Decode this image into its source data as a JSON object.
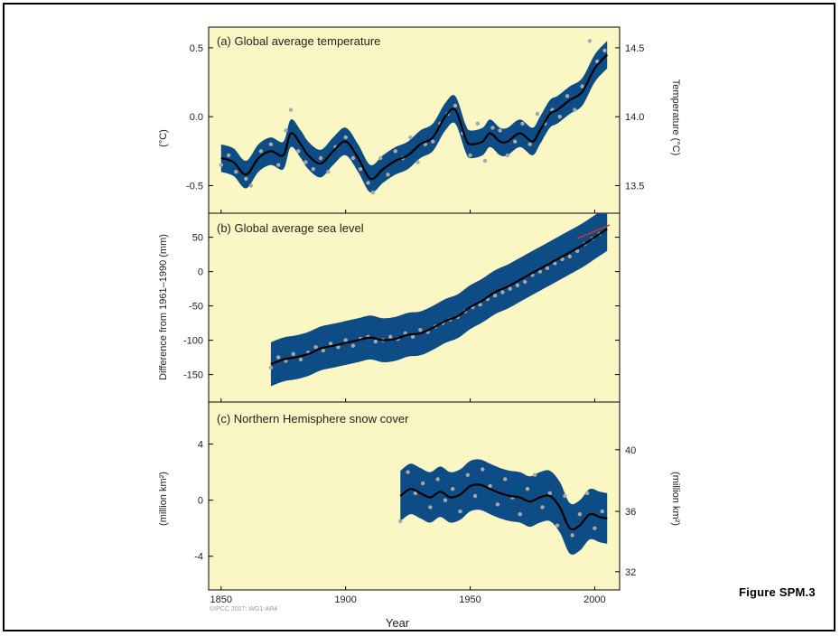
{
  "caption": "Figure SPM.3",
  "copyright": "©IPCC 2007: WG1-AR4",
  "colors": {
    "panel_bg": "#fbf7c4",
    "band": "#0e4c86",
    "curve": "#000000",
    "points": "#a8a8a8",
    "satellite_line": "#d0342c"
  },
  "chart_data": [
    {
      "type": "line",
      "title": "(a) Global average temperature",
      "ylabel": "(°C)",
      "y2label": "Temperature (°C)",
      "xlim": [
        1845,
        2010
      ],
      "ylim": [
        -0.7,
        0.65
      ],
      "y_ticks": [
        0.5,
        0.0,
        -0.5
      ],
      "y_tick_labels": [
        "0.5",
        "0.0",
        "-0.5"
      ],
      "y2_ticks": [
        0.5,
        0.0,
        -0.5
      ],
      "y2_tick_labels": [
        "14.5",
        "14.0",
        "13.5"
      ],
      "band_halfwidth": 0.1,
      "series": [
        {
          "x": [
            1850,
            1855,
            1860,
            1865,
            1870,
            1875,
            1878,
            1882,
            1885,
            1890,
            1895,
            1900,
            1905,
            1910,
            1915,
            1920,
            1925,
            1930,
            1935,
            1940,
            1944,
            1948,
            1950,
            1955,
            1958,
            1962,
            1965,
            1970,
            1975,
            1978,
            1982,
            1985,
            1990,
            1995,
            2000,
            2005
          ],
          "y": [
            -0.3,
            -0.33,
            -0.42,
            -0.3,
            -0.25,
            -0.28,
            -0.12,
            -0.2,
            -0.28,
            -0.34,
            -0.25,
            -0.18,
            -0.3,
            -0.45,
            -0.38,
            -0.32,
            -0.28,
            -0.2,
            -0.15,
            0.0,
            0.05,
            -0.15,
            -0.2,
            -0.18,
            -0.12,
            -0.18,
            -0.18,
            -0.12,
            -0.18,
            -0.1,
            0.02,
            0.05,
            0.12,
            0.18,
            0.35,
            0.45
          ]
        }
      ],
      "points": {
        "x": [
          1850,
          1853,
          1856,
          1860,
          1862,
          1866,
          1870,
          1873,
          1876,
          1878,
          1881,
          1884,
          1887,
          1890,
          1893,
          1896,
          1900,
          1903,
          1906,
          1909,
          1911,
          1914,
          1917,
          1920,
          1923,
          1926,
          1929,
          1932,
          1935,
          1938,
          1941,
          1944,
          1947,
          1950,
          1953,
          1956,
          1959,
          1962,
          1965,
          1968,
          1971,
          1974,
          1977,
          1980,
          1983,
          1986,
          1989,
          1992,
          1995,
          1998,
          2001,
          2004
        ],
        "y": [
          -0.35,
          -0.28,
          -0.4,
          -0.45,
          -0.5,
          -0.25,
          -0.2,
          -0.35,
          -0.1,
          0.05,
          -0.25,
          -0.33,
          -0.38,
          -0.3,
          -0.4,
          -0.22,
          -0.15,
          -0.3,
          -0.38,
          -0.48,
          -0.55,
          -0.3,
          -0.42,
          -0.25,
          -0.3,
          -0.15,
          -0.33,
          -0.2,
          -0.18,
          -0.05,
          0.02,
          0.08,
          -0.12,
          -0.28,
          -0.05,
          -0.32,
          -0.08,
          -0.1,
          -0.28,
          -0.18,
          -0.05,
          -0.2,
          0.02,
          -0.05,
          0.05,
          0.0,
          0.15,
          0.05,
          0.22,
          0.55,
          0.4,
          0.48
        ]
      }
    },
    {
      "type": "line",
      "title": "(b) Global average sea level",
      "ylabel": "Difference from 1961–1990 (mm)",
      "xlim": [
        1845,
        2010
      ],
      "ylim": [
        -190,
        85
      ],
      "y_ticks": [
        50,
        0,
        -50,
        -100,
        -150
      ],
      "y_tick_labels": [
        "50",
        "0",
        "-50",
        "-100",
        "-150"
      ],
      "band_halfwidth": 32,
      "series": [
        {
          "x": [
            1870,
            1875,
            1880,
            1885,
            1890,
            1895,
            1900,
            1905,
            1910,
            1915,
            1920,
            1925,
            1930,
            1935,
            1940,
            1945,
            1950,
            1955,
            1960,
            1965,
            1970,
            1975,
            1980,
            1985,
            1990,
            1995,
            2000,
            2005
          ],
          "y": [
            -135,
            -128,
            -125,
            -120,
            -112,
            -108,
            -104,
            -100,
            -96,
            -100,
            -98,
            -92,
            -90,
            -82,
            -72,
            -65,
            -52,
            -42,
            -30,
            -22,
            -12,
            -2,
            8,
            18,
            28,
            38,
            50,
            62
          ]
        }
      ],
      "points": {
        "x": [
          1870,
          1873,
          1876,
          1879,
          1882,
          1885,
          1888,
          1891,
          1894,
          1897,
          1900,
          1903,
          1906,
          1909,
          1912,
          1915,
          1918,
          1921,
          1924,
          1927,
          1930,
          1933,
          1936,
          1939,
          1942,
          1945,
          1948,
          1951,
          1954,
          1957,
          1960,
          1963,
          1966,
          1969,
          1972,
          1975,
          1978,
          1981,
          1984,
          1987,
          1990,
          1993,
          1996,
          1999,
          2002
        ],
        "y": [
          -140,
          -125,
          -130,
          -120,
          -128,
          -118,
          -110,
          -115,
          -105,
          -110,
          -100,
          -108,
          -98,
          -95,
          -102,
          -100,
          -95,
          -98,
          -90,
          -95,
          -85,
          -88,
          -80,
          -75,
          -70,
          -66,
          -58,
          -52,
          -48,
          -40,
          -35,
          -30,
          -25,
          -20,
          -15,
          -5,
          0,
          5,
          12,
          18,
          22,
          30,
          40,
          48,
          55
        ]
      },
      "satellite": {
        "x": [
          1993,
          2006
        ],
        "y": [
          48,
          68
        ]
      }
    },
    {
      "type": "line",
      "title": "(c) Northern Hemisphere snow cover",
      "ylabel": "(million km²)",
      "y2label": "(million km²)",
      "xlabel": "Year",
      "xlim": [
        1845,
        2010
      ],
      "ylim": [
        -6.4,
        7.0
      ],
      "y_ticks": [
        4,
        0,
        -4
      ],
      "y_tick_labels": [
        "4",
        "0",
        "-4"
      ],
      "y2_ticks": [
        3.6,
        -0.8,
        -5.1
      ],
      "y2_tick_labels": [
        "40",
        "36",
        "32"
      ],
      "x_ticks": [
        1850,
        1900,
        1950,
        2000
      ],
      "x_tick_labels": [
        "1850",
        "1900",
        "1950",
        "2000"
      ],
      "band_halfwidth": 1.8,
      "series": [
        {
          "x": [
            1922,
            1926,
            1930,
            1934,
            1938,
            1942,
            1946,
            1950,
            1954,
            1958,
            1962,
            1966,
            1970,
            1974,
            1978,
            1982,
            1986,
            1990,
            1994,
            1998,
            2002,
            2005
          ],
          "y": [
            0.3,
            0.8,
            0.5,
            0.2,
            0.6,
            0.2,
            0.4,
            1.0,
            1.1,
            0.8,
            0.5,
            0.3,
            0.2,
            -0.1,
            0.2,
            0.3,
            -0.5,
            -2.0,
            -1.8,
            -1.0,
            -1.2,
            -1.3
          ]
        }
      ],
      "points": {
        "x": [
          1922,
          1925,
          1928,
          1931,
          1934,
          1937,
          1940,
          1943,
          1946,
          1949,
          1952,
          1955,
          1958,
          1961,
          1964,
          1967,
          1970,
          1973,
          1976,
          1979,
          1982,
          1985,
          1988,
          1991,
          1994,
          1997,
          2000,
          2003
        ],
        "y": [
          -1.5,
          2.0,
          0.5,
          1.2,
          -0.5,
          1.5,
          0.0,
          0.8,
          -0.8,
          1.8,
          0.3,
          2.2,
          1.0,
          -0.3,
          1.5,
          0.2,
          -1.0,
          0.8,
          1.8,
          -0.5,
          0.5,
          -1.8,
          0.3,
          -2.5,
          -1.0,
          0.5,
          -2.0,
          -0.8
        ]
      }
    }
  ]
}
